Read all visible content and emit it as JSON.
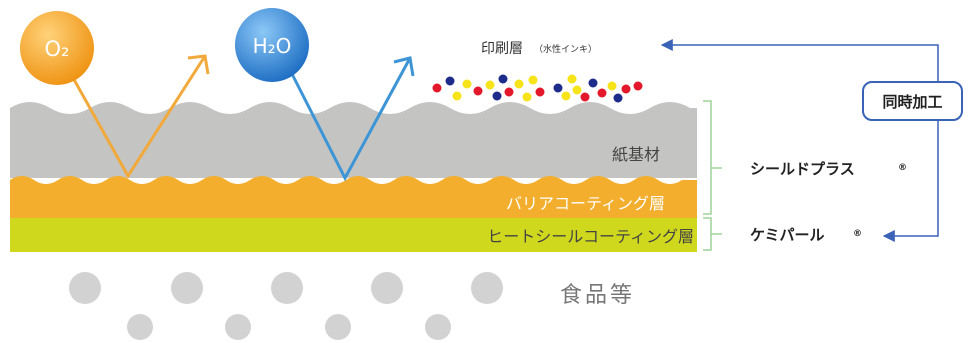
{
  "molecules": [
    {
      "name": "oxygen",
      "label": "O₂",
      "color": "#f6a623"
    },
    {
      "name": "water",
      "label": "H₂O",
      "color": "#2f86d6"
    }
  ],
  "layers": {
    "print": {
      "label": "印刷層",
      "note": "（水性インキ）"
    },
    "paper": {
      "label": "紙基材"
    },
    "barrier": {
      "label": "バリアコーティング層",
      "color": "#f3ae2d"
    },
    "heatseal": {
      "label": "ヒートシールコーティング層",
      "color": "#cfd81c"
    }
  },
  "food": {
    "label": "食品等"
  },
  "products": {
    "shieldplus": "シールドプラス",
    "chemipearl": "ケミパール",
    "registered": "®"
  },
  "process": {
    "label": "同時加工"
  },
  "colors": {
    "arrow_orange": "#f2a93b",
    "arrow_blue": "#3d95d6",
    "link_blue": "#3a63b8",
    "paper_gray": "#c4c4c2",
    "bracket_green": "#9fd39a",
    "dot_gray": "#d2d2d2",
    "ink_red": "#e3192b",
    "ink_navy": "#1d2b8a",
    "ink_yellow": "#f7e31a"
  }
}
